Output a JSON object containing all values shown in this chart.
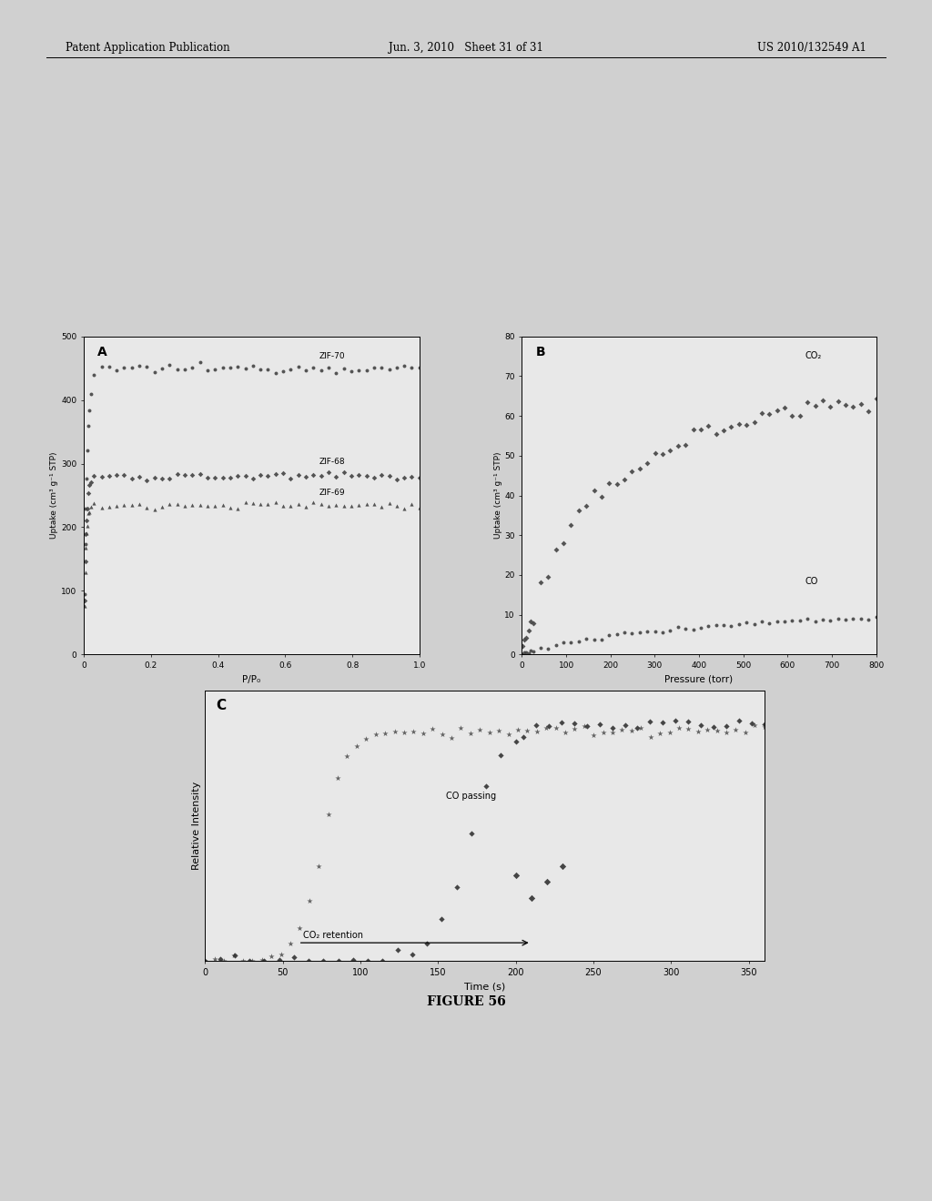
{
  "header_left": "Patent Application Publication",
  "header_center": "Jun. 3, 2010   Sheet 31 of 31",
  "header_right": "US 2010/132549 A1",
  "figure_caption": "FIGURE 56",
  "bg_color": "#d8d8d8",
  "plot_A": {
    "label": "A",
    "xlabel": "P/P₀",
    "ylabel": "Uptake (cm³ g⁻¹ STP)",
    "xlim": [
      0,
      1.0
    ],
    "ylim": [
      0,
      500
    ],
    "yticks": [
      0,
      100,
      200,
      300,
      400,
      500
    ],
    "xticks": [
      0,
      0.2,
      0.4,
      0.6,
      0.8,
      1.0
    ],
    "xtick_labels": [
      "0",
      "0.2",
      "0.4",
      "0.6",
      "0.8",
      "1.0"
    ],
    "zif70_plateau": 450,
    "zif68_plateau": 280,
    "zif69_plateau": 235
  },
  "plot_B": {
    "label": "B",
    "xlabel": "Pressure (torr)",
    "ylabel": "Uptake (cm³ g⁻¹ STP)",
    "xlim": [
      0,
      800
    ],
    "ylim": [
      0,
      80
    ],
    "yticks": [
      0,
      10,
      20,
      30,
      40,
      50,
      60,
      70,
      80
    ],
    "xticks": [
      0,
      100,
      200,
      300,
      400,
      500,
      600,
      700,
      800
    ]
  },
  "plot_C": {
    "label": "C",
    "xlabel": "Time (s)",
    "ylabel": "Relative Intensity",
    "xlim": [
      0,
      360
    ],
    "ylim": [
      0,
      1.15
    ],
    "xticks": [
      0,
      50,
      100,
      150,
      200,
      250,
      300,
      350
    ],
    "annotation_co": "CO passing",
    "annotation_co2": "CO₂ retention"
  }
}
